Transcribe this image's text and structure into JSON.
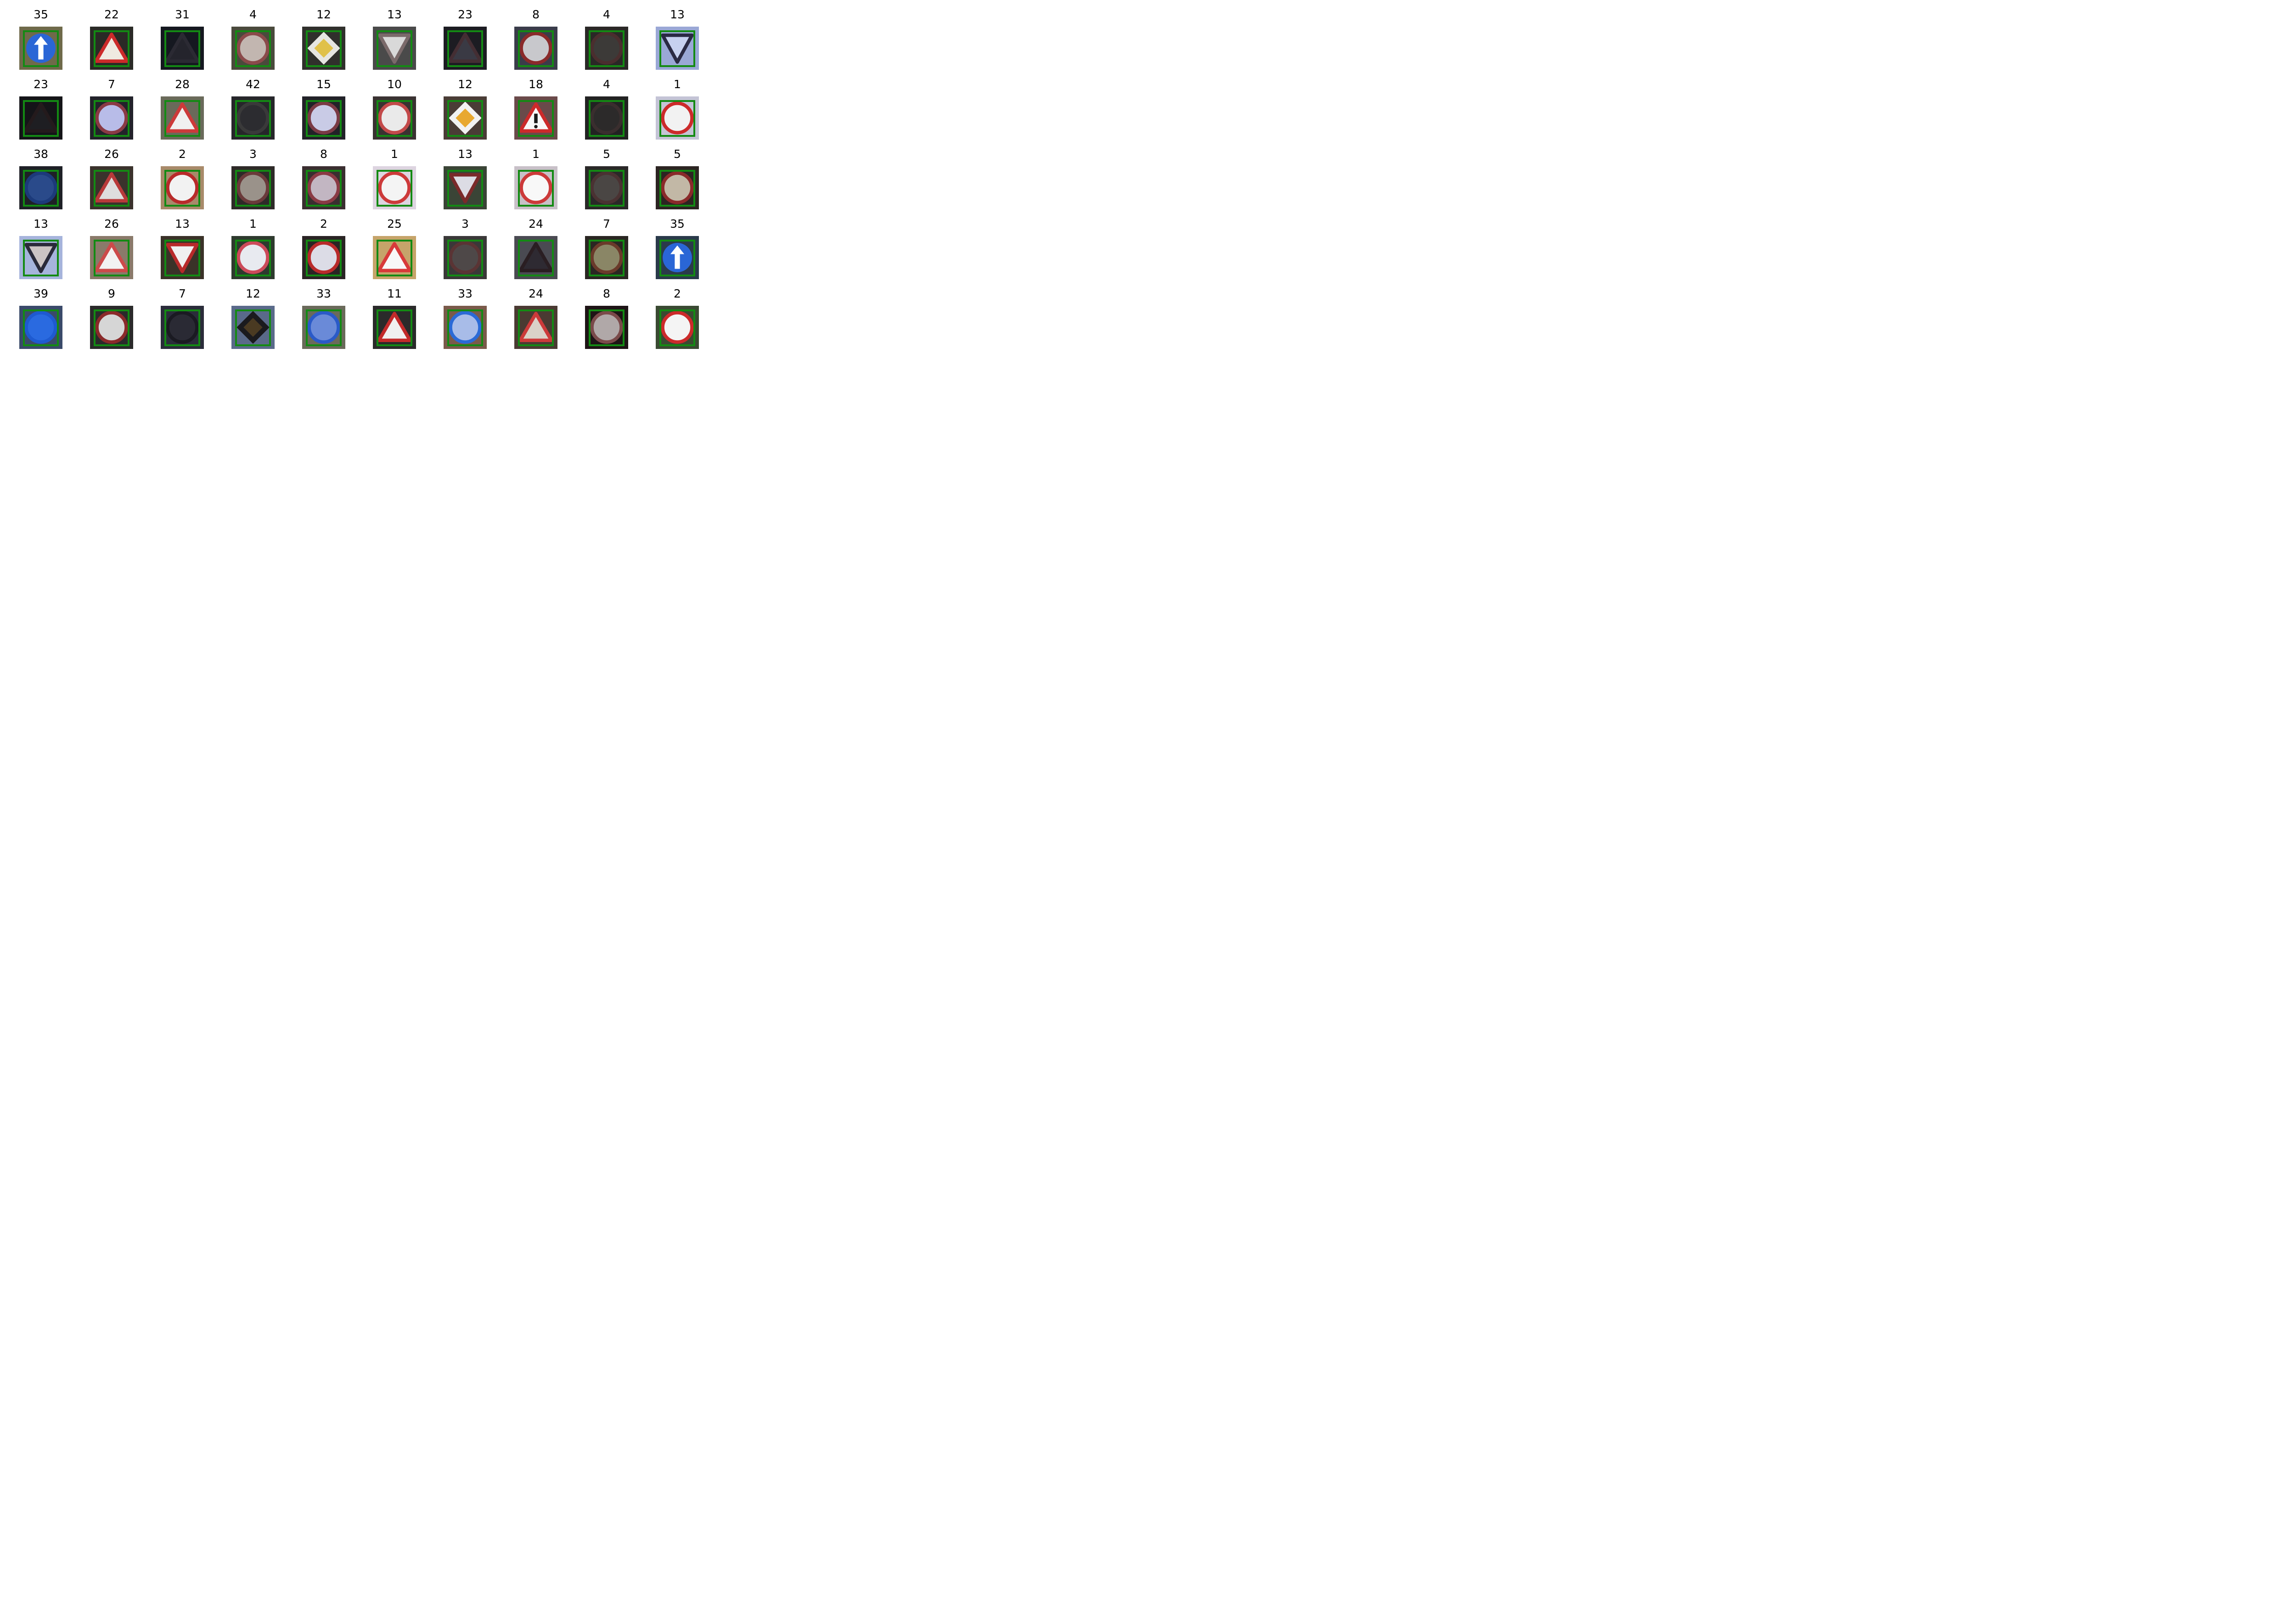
{
  "grid": {
    "rows": 5,
    "cols": 10,
    "box_color": "#138a13",
    "items": [
      {
        "label": "35",
        "bg": "#6f6a4a",
        "sign": "ahead",
        "c1": "#2a66d6",
        "c2": "#ffffff"
      },
      {
        "label": "22",
        "bg": "#2a2a26",
        "sign": "triangle",
        "c1": "#cc2a2a",
        "c2": "#efe9e1"
      },
      {
        "label": "31",
        "bg": "#151820",
        "sign": "triangle",
        "c1": "#2b2a33",
        "c2": "#24242c"
      },
      {
        "label": "4",
        "bg": "#4a4a3c",
        "sign": "circle",
        "c1": "#8a4a4a",
        "c2": "#c2b6b0"
      },
      {
        "label": "12",
        "bg": "#30302c",
        "sign": "diamond",
        "c1": "#e6e6e1",
        "c2": "#e0c14a"
      },
      {
        "label": "13",
        "bg": "#4a4a4a",
        "sign": "yield",
        "c1": "#7a6a6a",
        "c2": "#d9d9d9"
      },
      {
        "label": "23",
        "bg": "#1c1c22",
        "sign": "triangle",
        "c1": "#442e33",
        "c2": "#3a3a44"
      },
      {
        "label": "8",
        "bg": "#3a3c4a",
        "sign": "circle",
        "c1": "#8a2a2a",
        "c2": "#c8c8cc"
      },
      {
        "label": "4",
        "bg": "#2a2826",
        "sign": "circle",
        "c1": "#4a2e2e",
        "c2": "#3c3a38"
      },
      {
        "label": "13",
        "bg": "#9aa8d6",
        "sign": "yield",
        "c1": "#2a2a44",
        "c2": "#c7d1f0"
      },
      {
        "label": "23",
        "bg": "#141418",
        "sign": "triangle",
        "c1": "#241a1c",
        "c2": "#1e1e22"
      },
      {
        "label": "7",
        "bg": "#22222a",
        "sign": "circle",
        "c1": "#8a3a44",
        "c2": "#b8bce8"
      },
      {
        "label": "28",
        "bg": "#6a6a5a",
        "sign": "triangle",
        "c1": "#cc3a3a",
        "c2": "#f0f0f0"
      },
      {
        "label": "42",
        "bg": "#26262a",
        "sign": "circle",
        "c1": "#3a3a3a",
        "c2": "#2c2c30"
      },
      {
        "label": "15",
        "bg": "#222228",
        "sign": "circle",
        "c1": "#7a3a44",
        "c2": "#c9cbe6"
      },
      {
        "label": "10",
        "bg": "#3a3232",
        "sign": "circle",
        "c1": "#c24a4a",
        "c2": "#eaeaea"
      },
      {
        "label": "12",
        "bg": "#4a3c36",
        "sign": "diamond",
        "c1": "#f2f2f2",
        "c2": "#e8a830"
      },
      {
        "label": "18",
        "bg": "#6a4a4a",
        "sign": "warning",
        "c1": "#cc2a2a",
        "c2": "#f8f8f8"
      },
      {
        "label": "4",
        "bg": "#222222",
        "sign": "circle",
        "c1": "#3a2e2e",
        "c2": "#2c2a2a"
      },
      {
        "label": "1",
        "bg": "#c4c4d6",
        "sign": "circle",
        "c1": "#cc2a2a",
        "c2": "#f2f2f2"
      },
      {
        "label": "38",
        "bg": "#1e2026",
        "sign": "circle",
        "c1": "#1c3a7a",
        "c2": "#2a4a8a"
      },
      {
        "label": "26",
        "bg": "#3a322c",
        "sign": "triangle",
        "c1": "#b83a3a",
        "c2": "#dedede"
      },
      {
        "label": "2",
        "bg": "#a88a6a",
        "sign": "circle",
        "c1": "#b82a2a",
        "c2": "#f2f2f2"
      },
      {
        "label": "3",
        "bg": "#2e2a28",
        "sign": "circle",
        "c1": "#6a3a3a",
        "c2": "#9a928a"
      },
      {
        "label": "8",
        "bg": "#3a2e30",
        "sign": "circle",
        "c1": "#8a3a44",
        "c2": "#c2b6c2"
      },
      {
        "label": "1",
        "bg": "#ddd4e0",
        "sign": "circle",
        "c1": "#cc3a3a",
        "c2": "#f4f4f4"
      },
      {
        "label": "13",
        "bg": "#3a4436",
        "sign": "yield",
        "c1": "#7a2a2a",
        "c2": "#dcdce4"
      },
      {
        "label": "1",
        "bg": "#c8c0c8",
        "sign": "circle",
        "c1": "#cc3a3a",
        "c2": "#f8f8f8"
      },
      {
        "label": "5",
        "bg": "#2a2828",
        "sign": "circle",
        "c1": "#4a3232",
        "c2": "#4a4644"
      },
      {
        "label": "5",
        "bg": "#2c2422",
        "sign": "circle",
        "c1": "#8a2a2a",
        "c2": "#c2b8a6"
      },
      {
        "label": "13",
        "bg": "#a6b4dc",
        "sign": "yield",
        "c1": "#2a2a3a",
        "c2": "#ccc4c4"
      },
      {
        "label": "26",
        "bg": "#8a7a6a",
        "sign": "triangle",
        "c1": "#cc4a4a",
        "c2": "#f2f2f2"
      },
      {
        "label": "13",
        "bg": "#3a3228",
        "sign": "yield",
        "c1": "#b82a2a",
        "c2": "#f0f0f0"
      },
      {
        "label": "1",
        "bg": "#2e3a2e",
        "sign": "circle",
        "c1": "#cc4a5a",
        "c2": "#e8eaf0"
      },
      {
        "label": "2",
        "bg": "#2a2424",
        "sign": "circle",
        "c1": "#b82a2a",
        "c2": "#dcdce6"
      },
      {
        "label": "25",
        "bg": "#c6a46a",
        "sign": "triangle",
        "c1": "#d83a3a",
        "c2": "#f8f8f8"
      },
      {
        "label": "3",
        "bg": "#3a3838",
        "sign": "circle",
        "c1": "#5a3434",
        "c2": "#4e4848"
      },
      {
        "label": "24",
        "bg": "#4a4a52",
        "sign": "triangle",
        "c1": "#2a1e22",
        "c2": "#2e2a32"
      },
      {
        "label": "7",
        "bg": "#2a2622",
        "sign": "circle",
        "c1": "#6a3a2a",
        "c2": "#8a8666"
      },
      {
        "label": "35",
        "bg": "#2a3a4a",
        "sign": "ahead",
        "c1": "#2a66d6",
        "c2": "#ffffff"
      },
      {
        "label": "39",
        "bg": "#3a4a6a",
        "sign": "circle",
        "c1": "#1e5ad0",
        "c2": "#2a6ae0"
      },
      {
        "label": "9",
        "bg": "#2a2a2a",
        "sign": "circle",
        "c1": "#8a2a2a",
        "c2": "#d6d6d6"
      },
      {
        "label": "7",
        "bg": "#2a2c3a",
        "sign": "circle",
        "c1": "#1a1a22",
        "c2": "#2a2a34"
      },
      {
        "label": "12",
        "bg": "#5a6a8a",
        "sign": "diamond",
        "c1": "#1a1a1e",
        "c2": "#4a3a22"
      },
      {
        "label": "33",
        "bg": "#6a6a5a",
        "sign": "circle",
        "c1": "#2a5ac8",
        "c2": "#6a8ad8"
      },
      {
        "label": "11",
        "bg": "#2a2a2a",
        "sign": "triangle",
        "c1": "#c22a2a",
        "c2": "#f0f0f0"
      },
      {
        "label": "33",
        "bg": "#7a5a4a",
        "sign": "circle",
        "c1": "#2a6ad6",
        "c2": "#a8bce8"
      },
      {
        "label": "24",
        "bg": "#4a3a32",
        "sign": "triangle",
        "c1": "#cc3a3a",
        "c2": "#dad2c8"
      },
      {
        "label": "8",
        "bg": "#1e1416",
        "sign": "circle",
        "c1": "#7a4a4a",
        "c2": "#b0a8a8"
      },
      {
        "label": "2",
        "bg": "#3a4a32",
        "sign": "circle",
        "c1": "#cc2a2a",
        "c2": "#f4f4f4"
      }
    ]
  }
}
